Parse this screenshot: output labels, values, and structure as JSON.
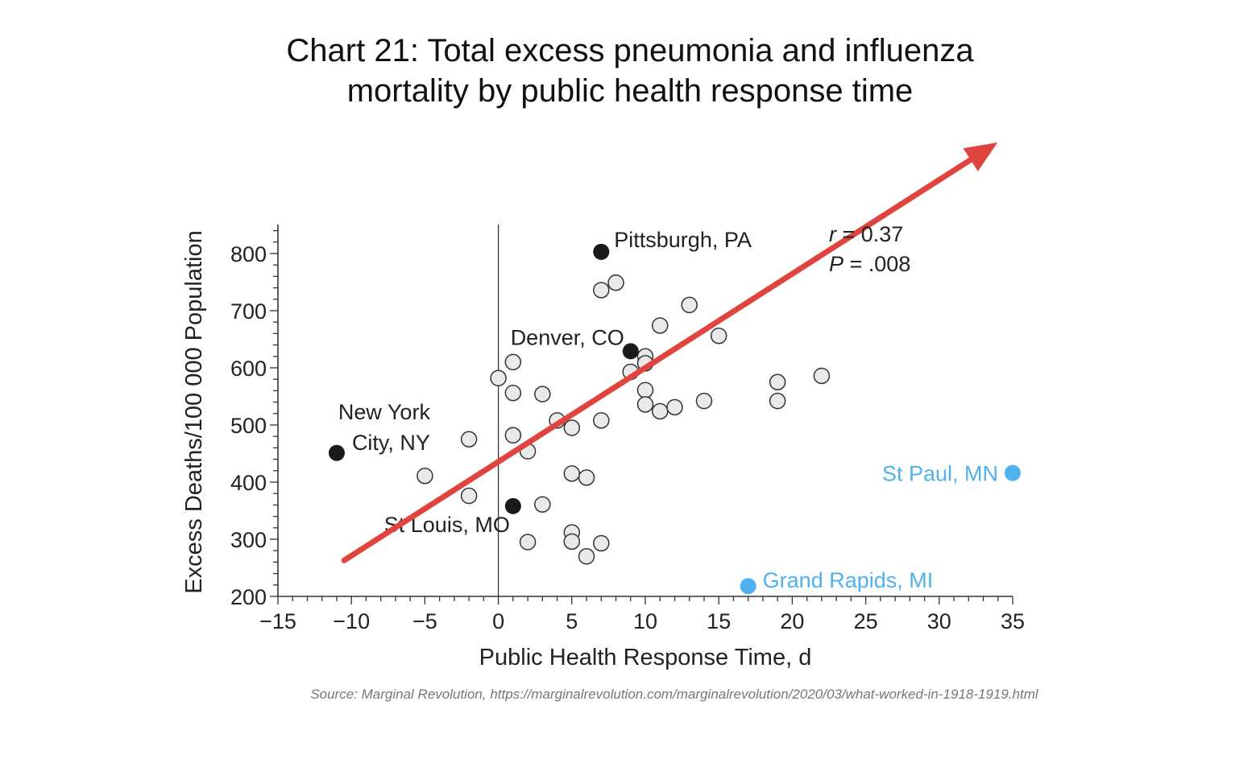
{
  "chart_data": {
    "type": "scatter",
    "title": "Chart 21: Total excess pneumonia and influenza mortality by public health response time",
    "title_lines": [
      "Chart 21: Total excess pneumonia and influenza",
      "mortality by public health response time"
    ],
    "xlabel": "Public Health Response Time, d",
    "ylabel": "Excess Deaths/100 000 Population",
    "xlim": [
      -15,
      35
    ],
    "ylim": [
      200,
      850
    ],
    "x_ticks": [
      -15,
      -10,
      -5,
      0,
      5,
      10,
      15,
      20,
      25,
      30,
      35
    ],
    "x_tick_labels": [
      "−15",
      "−10",
      "−5",
      "0",
      "5",
      "10",
      "15",
      "20",
      "25",
      "30",
      "35"
    ],
    "y_ticks": [
      200,
      300,
      400,
      500,
      600,
      700,
      800
    ],
    "y_tick_labels": [
      "200",
      "300",
      "400",
      "500",
      "600",
      "700",
      "800"
    ],
    "x_minor_step": 1,
    "y_minor_step": 20,
    "vertical_reference_line_x": 0,
    "grid": false,
    "stats": {
      "r_label": "r",
      "r_value": "= 0.37",
      "p_label": "P",
      "p_value": "= .008"
    },
    "points": [
      {
        "x": -5,
        "y": 411
      },
      {
        "x": -2,
        "y": 475
      },
      {
        "x": -2,
        "y": 376
      },
      {
        "x": 0,
        "y": 582
      },
      {
        "x": 1,
        "y": 610
      },
      {
        "x": 1,
        "y": 556
      },
      {
        "x": 1,
        "y": 482
      },
      {
        "x": 2,
        "y": 454
      },
      {
        "x": 2,
        "y": 295
      },
      {
        "x": 3,
        "y": 554
      },
      {
        "x": 3,
        "y": 361
      },
      {
        "x": 4,
        "y": 508
      },
      {
        "x": 5,
        "y": 495
      },
      {
        "x": 5,
        "y": 415
      },
      {
        "x": 5,
        "y": 312
      },
      {
        "x": 5,
        "y": 296
      },
      {
        "x": 6,
        "y": 408
      },
      {
        "x": 6,
        "y": 270
      },
      {
        "x": 7,
        "y": 736
      },
      {
        "x": 7,
        "y": 508
      },
      {
        "x": 7,
        "y": 293
      },
      {
        "x": 8,
        "y": 749
      },
      {
        "x": 9,
        "y": 593
      },
      {
        "x": 10,
        "y": 620
      },
      {
        "x": 10,
        "y": 608
      },
      {
        "x": 10,
        "y": 561
      },
      {
        "x": 10,
        "y": 536
      },
      {
        "x": 11,
        "y": 674
      },
      {
        "x": 11,
        "y": 524
      },
      {
        "x": 12,
        "y": 531
      },
      {
        "x": 13,
        "y": 710
      },
      {
        "x": 14,
        "y": 542
      },
      {
        "x": 15,
        "y": 656
      },
      {
        "x": 19,
        "y": 575
      },
      {
        "x": 19,
        "y": 542
      },
      {
        "x": 22,
        "y": 586
      }
    ],
    "highlighted_points": [
      {
        "name": "Pittsburgh, PA",
        "lines": [
          "Pittsburgh, PA"
        ],
        "x": 7,
        "y": 803,
        "color": "#1a1a1a",
        "label_color": "#222222"
      },
      {
        "name": "Denver, CO",
        "lines": [
          "Denver, CO"
        ],
        "x": 9,
        "y": 629,
        "color": "#1a1a1a",
        "label_color": "#222222"
      },
      {
        "name": "New York City, NY",
        "lines": [
          "New York",
          "City, NY"
        ],
        "x": -11,
        "y": 451,
        "color": "#1a1a1a",
        "label_color": "#222222"
      },
      {
        "name": "St Louis, MO",
        "lines": [
          "St Louis, MO"
        ],
        "x": 1,
        "y": 358,
        "color": "#1a1a1a",
        "label_color": "#222222"
      },
      {
        "name": "St Paul, MN",
        "lines": [
          "St Paul, MN"
        ],
        "x": 35,
        "y": 416,
        "color": "#4fb2ee",
        "label_color": "#4fb2ee"
      },
      {
        "name": "Grand Rapids, MI",
        "lines": [
          "Grand Rapids, MI"
        ],
        "x": 17,
        "y": 218,
        "color": "#4fb2ee",
        "label_color": "#4fb2ee"
      }
    ],
    "trend_arrow": {
      "from": [
        -10.5,
        263
      ],
      "to": [
        32.5,
        970
      ],
      "color": "#e0443e"
    },
    "colors": {
      "hollow_fill": "#e9e9e9",
      "hollow_stroke": "#333333",
      "axis": "#333333"
    }
  },
  "source": "Source: Marginal Revolution, https://marginalrevolution.com/marginalrevolution/2020/03/what-worked-in-1918-1919.html"
}
